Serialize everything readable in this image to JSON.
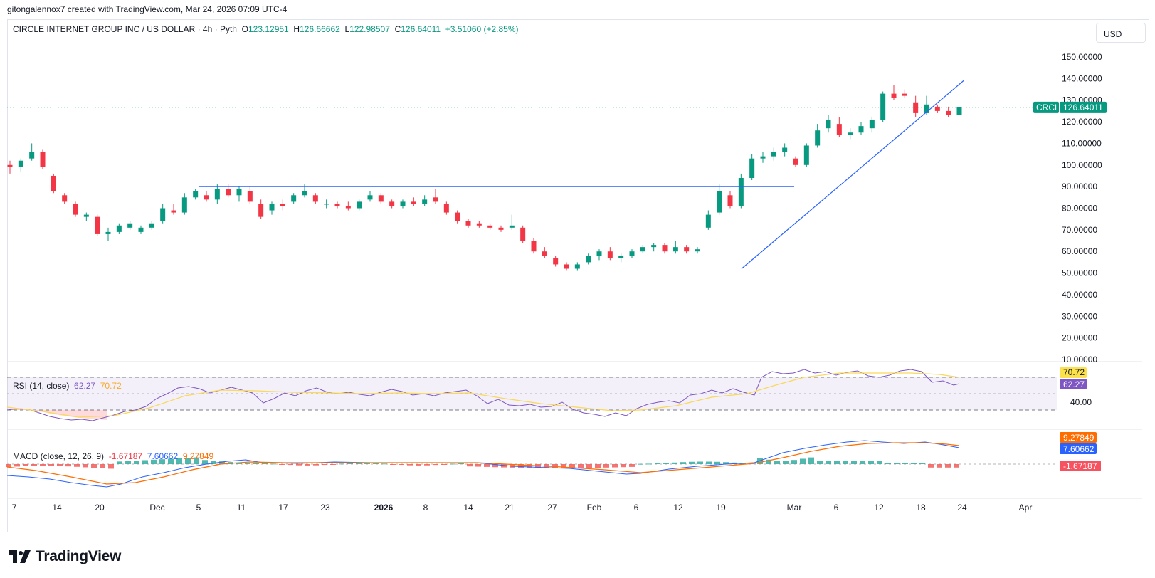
{
  "attribution": "gitongalennox7 created with TradingView.com, Mar 24, 2026 07:09 UTC-4",
  "legend": {
    "title": "CIRCLE INTERNET GROUP INC / US DOLLAR · 4h · Pyth",
    "o_label": "O",
    "o_value": "123.12951",
    "h_label": "H",
    "h_value": "126.66662",
    "l_label": "L",
    "l_value": "122.98507",
    "c_label": "C",
    "c_value": "126.64011",
    "change": "+3.51060 (+2.85%)"
  },
  "currency": "USD",
  "logo_text": "TradingView",
  "colors": {
    "up": "#089981",
    "down": "#f23645",
    "trendline": "#2962ff",
    "rsi": "#7e57c2",
    "rsi_ma": "#f9d85a",
    "macd": "#2962ff",
    "signal": "#ff6d00"
  },
  "chart_data": {
    "type": "candlestick",
    "symbol": "CRCL",
    "last_price": "126.64011",
    "ylim": [
      10,
      150
    ],
    "y_ticks": [
      "150.00000",
      "140.00000",
      "130.00000",
      "120.00000",
      "110.00000",
      "100.00000",
      "90.00000",
      "80.00000",
      "70.00000",
      "60.00000",
      "50.00000",
      "40.00000",
      "30.00000",
      "20.00000",
      "10.00000"
    ],
    "x_ticks": [
      "7",
      "14",
      "20",
      "Dec",
      "5",
      "11",
      "17",
      "23",
      "2026",
      "8",
      "14",
      "21",
      "27",
      "Feb",
      "6",
      "12",
      "19",
      "Mar",
      "6",
      "12",
      "18",
      "24",
      "Apr"
    ],
    "candles_daily_approx": [
      {
        "o": 100,
        "h": 102,
        "l": 96,
        "c": 99
      },
      {
        "o": 99,
        "h": 103,
        "l": 97,
        "c": 102
      },
      {
        "o": 103,
        "h": 110,
        "l": 102,
        "c": 106
      },
      {
        "o": 106,
        "h": 107,
        "l": 98,
        "c": 99
      },
      {
        "o": 95,
        "h": 96,
        "l": 87,
        "c": 88
      },
      {
        "o": 86,
        "h": 87,
        "l": 82,
        "c": 83
      },
      {
        "o": 82,
        "h": 83,
        "l": 76,
        "c": 77
      },
      {
        "o": 76,
        "h": 78,
        "l": 74,
        "c": 77
      },
      {
        "o": 76,
        "h": 77,
        "l": 67,
        "c": 68
      },
      {
        "o": 68,
        "h": 71,
        "l": 65,
        "c": 69
      },
      {
        "o": 69,
        "h": 73,
        "l": 68,
        "c": 72
      },
      {
        "o": 71,
        "h": 74,
        "l": 70,
        "c": 73
      },
      {
        "o": 69,
        "h": 72,
        "l": 68,
        "c": 71
      },
      {
        "o": 71,
        "h": 74,
        "l": 70,
        "c": 73
      },
      {
        "o": 74,
        "h": 82,
        "l": 73,
        "c": 80
      },
      {
        "o": 79,
        "h": 82,
        "l": 77,
        "c": 78
      },
      {
        "o": 78,
        "h": 87,
        "l": 77,
        "c": 85
      },
      {
        "o": 85,
        "h": 89,
        "l": 84,
        "c": 88
      },
      {
        "o": 86,
        "h": 88,
        "l": 83,
        "c": 84
      },
      {
        "o": 84,
        "h": 91,
        "l": 82,
        "c": 89
      },
      {
        "o": 89,
        "h": 91,
        "l": 85,
        "c": 86
      },
      {
        "o": 86,
        "h": 90,
        "l": 83,
        "c": 89
      },
      {
        "o": 88,
        "h": 90,
        "l": 82,
        "c": 83
      },
      {
        "o": 82,
        "h": 84,
        "l": 75,
        "c": 76
      },
      {
        "o": 79,
        "h": 83,
        "l": 77,
        "c": 82
      },
      {
        "o": 82,
        "h": 84,
        "l": 79,
        "c": 81
      },
      {
        "o": 83,
        "h": 87,
        "l": 82,
        "c": 86
      },
      {
        "o": 86,
        "h": 91,
        "l": 85,
        "c": 88
      },
      {
        "o": 86,
        "h": 87,
        "l": 82,
        "c": 83
      },
      {
        "o": 82,
        "h": 84,
        "l": 80,
        "c": 82
      },
      {
        "o": 82,
        "h": 83,
        "l": 80,
        "c": 81
      },
      {
        "o": 81,
        "h": 83,
        "l": 79,
        "c": 80
      },
      {
        "o": 80,
        "h": 84,
        "l": 79,
        "c": 83
      },
      {
        "o": 84,
        "h": 88,
        "l": 83,
        "c": 86
      },
      {
        "o": 86,
        "h": 87,
        "l": 82,
        "c": 83
      },
      {
        "o": 83,
        "h": 84,
        "l": 80,
        "c": 81
      },
      {
        "o": 81,
        "h": 84,
        "l": 80,
        "c": 83
      },
      {
        "o": 83,
        "h": 85,
        "l": 81,
        "c": 82
      },
      {
        "o": 82,
        "h": 86,
        "l": 81,
        "c": 84
      },
      {
        "o": 85,
        "h": 89,
        "l": 82,
        "c": 83
      },
      {
        "o": 82,
        "h": 83,
        "l": 77,
        "c": 78
      },
      {
        "o": 78,
        "h": 79,
        "l": 73,
        "c": 74
      },
      {
        "o": 74,
        "h": 75,
        "l": 71,
        "c": 72
      },
      {
        "o": 73,
        "h": 74,
        "l": 71,
        "c": 72
      },
      {
        "o": 72,
        "h": 73,
        "l": 70,
        "c": 71
      },
      {
        "o": 71,
        "h": 72,
        "l": 69,
        "c": 70
      },
      {
        "o": 71,
        "h": 77,
        "l": 70,
        "c": 72
      },
      {
        "o": 71,
        "h": 72,
        "l": 64,
        "c": 65
      },
      {
        "o": 65,
        "h": 66,
        "l": 59,
        "c": 60
      },
      {
        "o": 60,
        "h": 62,
        "l": 57,
        "c": 58
      },
      {
        "o": 57,
        "h": 58,
        "l": 53,
        "c": 54
      },
      {
        "o": 54,
        "h": 55,
        "l": 51,
        "c": 52
      },
      {
        "o": 52,
        "h": 55,
        "l": 51,
        "c": 54
      },
      {
        "o": 55,
        "h": 59,
        "l": 54,
        "c": 58
      },
      {
        "o": 58,
        "h": 61,
        "l": 56,
        "c": 60
      },
      {
        "o": 60,
        "h": 62,
        "l": 56,
        "c": 57
      },
      {
        "o": 57,
        "h": 59,
        "l": 55,
        "c": 58
      },
      {
        "o": 58,
        "h": 61,
        "l": 57,
        "c": 60
      },
      {
        "o": 60,
        "h": 63,
        "l": 59,
        "c": 62
      },
      {
        "o": 62,
        "h": 64,
        "l": 60,
        "c": 63
      },
      {
        "o": 63,
        "h": 64,
        "l": 59,
        "c": 60
      },
      {
        "o": 60,
        "h": 65,
        "l": 59,
        "c": 62
      },
      {
        "o": 62,
        "h": 63,
        "l": 59,
        "c": 60
      },
      {
        "o": 60,
        "h": 62,
        "l": 59,
        "c": 61
      },
      {
        "o": 71,
        "h": 79,
        "l": 70,
        "c": 77
      },
      {
        "o": 78,
        "h": 91,
        "l": 77,
        "c": 88
      },
      {
        "o": 86,
        "h": 88,
        "l": 80,
        "c": 81
      },
      {
        "o": 81,
        "h": 96,
        "l": 80,
        "c": 94
      },
      {
        "o": 94,
        "h": 105,
        "l": 93,
        "c": 103
      },
      {
        "o": 103,
        "h": 106,
        "l": 101,
        "c": 104
      },
      {
        "o": 104,
        "h": 108,
        "l": 102,
        "c": 106
      },
      {
        "o": 106,
        "h": 110,
        "l": 104,
        "c": 108
      },
      {
        "o": 103,
        "h": 104,
        "l": 99,
        "c": 100
      },
      {
        "o": 100,
        "h": 110,
        "l": 99,
        "c": 109
      },
      {
        "o": 109,
        "h": 119,
        "l": 108,
        "c": 116
      },
      {
        "o": 117,
        "h": 123,
        "l": 115,
        "c": 121
      },
      {
        "o": 119,
        "h": 122,
        "l": 113,
        "c": 114
      },
      {
        "o": 114,
        "h": 117,
        "l": 112,
        "c": 115
      },
      {
        "o": 115,
        "h": 120,
        "l": 114,
        "c": 118
      },
      {
        "o": 117,
        "h": 122,
        "l": 115,
        "c": 121
      },
      {
        "o": 121,
        "h": 134,
        "l": 120,
        "c": 133
      },
      {
        "o": 133,
        "h": 137,
        "l": 130,
        "c": 131
      },
      {
        "o": 133,
        "h": 135,
        "l": 131,
        "c": 132
      },
      {
        "o": 129,
        "h": 132,
        "l": 122,
        "c": 124
      },
      {
        "o": 124,
        "h": 132,
        "l": 123,
        "c": 128
      },
      {
        "o": 127,
        "h": 128,
        "l": 124,
        "c": 125
      },
      {
        "o": 125,
        "h": 127,
        "l": 122,
        "c": 123
      },
      {
        "o": 123.13,
        "h": 126.67,
        "l": 122.99,
        "c": 126.64
      }
    ],
    "rsi": {
      "label": "RSI (14, close)",
      "value": "62.27",
      "ma_value": "70.72",
      "levels": [
        "40.00"
      ]
    },
    "macd": {
      "label": "MACD (close, 12, 26, 9)",
      "histogram": "-1.67187",
      "macd": "7.60662",
      "signal": "9.27849"
    }
  }
}
